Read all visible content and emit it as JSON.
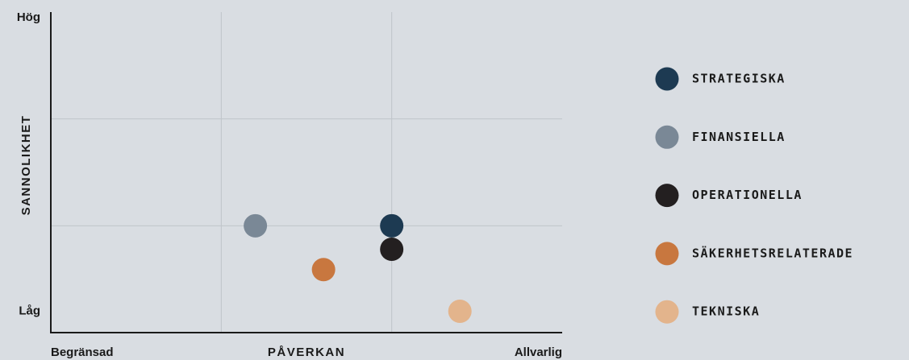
{
  "chart_data": {
    "type": "scatter",
    "xlabel": "PÅVERKAN",
    "ylabel": "SANNOLIKHET",
    "xlim": [
      0,
      3
    ],
    "ylim": [
      0,
      3
    ],
    "xticks": [
      {
        "value": 0,
        "label": "Begränsad"
      },
      {
        "value": 1,
        "label": null
      },
      {
        "value": 2,
        "label": null
      },
      {
        "value": 3,
        "label": "Allvarlig"
      }
    ],
    "yticks": [
      {
        "value": 0.2,
        "label": "Låg"
      },
      {
        "value": 1,
        "label": null
      },
      {
        "value": 2,
        "label": null
      },
      {
        "value": 3,
        "label": "Hög"
      }
    ],
    "grid": true,
    "legend": "right",
    "series": [
      {
        "name": "STRATEGISKA",
        "color": "#1d3a52",
        "x": [
          2.0
        ],
        "values": [
          1.0
        ]
      },
      {
        "name": "FINANSIELLA",
        "color": "#7a8896",
        "x": [
          1.2
        ],
        "values": [
          1.0
        ]
      },
      {
        "name": "OPERATIONELLA",
        "color": "#231f20",
        "x": [
          2.0
        ],
        "values": [
          0.78
        ]
      },
      {
        "name": "SÄKERHETSRELATERADE",
        "color": "#c8773f",
        "x": [
          1.6
        ],
        "values": [
          0.59
        ]
      },
      {
        "name": "TEKNISKA",
        "color": "#e3b48c",
        "x": [
          2.4
        ],
        "values": [
          0.2
        ]
      }
    ]
  }
}
